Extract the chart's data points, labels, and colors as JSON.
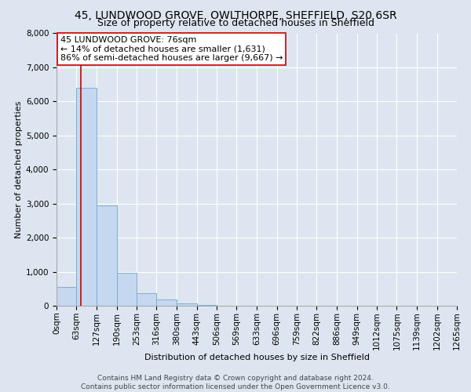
{
  "title": "45, LUNDWOOD GROVE, OWLTHORPE, SHEFFIELD, S20 6SR",
  "subtitle": "Size of property relative to detached houses in Sheffield",
  "xlabel": "Distribution of detached houses by size in Sheffield",
  "ylabel": "Number of detached properties",
  "bin_edges": [
    0,
    63,
    127,
    190,
    253,
    316,
    380,
    443,
    506,
    569,
    633,
    696,
    759,
    822,
    886,
    949,
    1012,
    1075,
    1139,
    1202,
    1265
  ],
  "bin_labels": [
    "0sqm",
    "63sqm",
    "127sqm",
    "190sqm",
    "253sqm",
    "316sqm",
    "380sqm",
    "443sqm",
    "506sqm",
    "569sqm",
    "633sqm",
    "696sqm",
    "759sqm",
    "822sqm",
    "886sqm",
    "949sqm",
    "1012sqm",
    "1075sqm",
    "1139sqm",
    "1202sqm",
    "1265sqm"
  ],
  "bar_heights": [
    550,
    6400,
    2950,
    975,
    375,
    175,
    75,
    25,
    0,
    0,
    0,
    0,
    0,
    0,
    0,
    0,
    0,
    0,
    0,
    0
  ],
  "bar_color": "#c5d8f0",
  "bar_edge_color": "#7bafd4",
  "property_line_x": 76,
  "property_line_color": "#cc0000",
  "annotation_text": "45 LUNDWOOD GROVE: 76sqm\n← 14% of detached houses are smaller (1,631)\n86% of semi-detached houses are larger (9,667) →",
  "annotation_box_facecolor": "#ffffff",
  "annotation_box_edgecolor": "#cc0000",
  "ylim": [
    0,
    8000
  ],
  "yticks": [
    0,
    1000,
    2000,
    3000,
    4000,
    5000,
    6000,
    7000,
    8000
  ],
  "grid_color": "#ffffff",
  "background_color": "#dde6f0",
  "footer_text": "Contains HM Land Registry data © Crown copyright and database right 2024.\nContains public sector information licensed under the Open Government Licence v3.0.",
  "title_fontsize": 10,
  "subtitle_fontsize": 9,
  "xlabel_fontsize": 8,
  "ylabel_fontsize": 8,
  "tick_fontsize": 7.5,
  "annotation_fontsize": 8,
  "footer_fontsize": 6.5
}
